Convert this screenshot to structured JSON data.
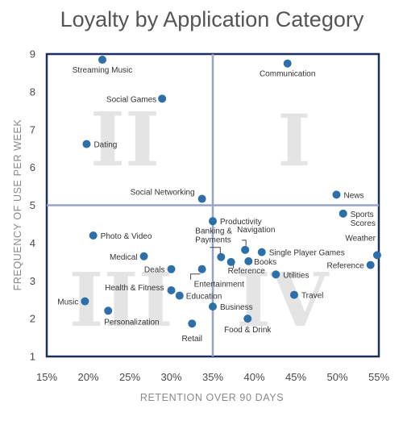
{
  "chart_data": {
    "type": "scatter",
    "title": "Loyalty by Application Category",
    "xlabel": "RETENTION OVER 90 DAYS",
    "ylabel": "FREQUENCY OF USE PER WEEK",
    "xlim": [
      15,
      55
    ],
    "ylim": [
      1,
      9
    ],
    "x_ticks": [
      "15%",
      "20%",
      "25%",
      "30%",
      "35%",
      "40%",
      "45%",
      "50%",
      "55%"
    ],
    "y_ticks": [
      "1",
      "2",
      "3",
      "4",
      "5",
      "6",
      "7",
      "8",
      "9"
    ],
    "quadrant_labels": [
      "I",
      "II",
      "III",
      "IV"
    ],
    "quadrant_divider": {
      "x": 35,
      "y": 5
    },
    "colors": {
      "point": "#2d6fa9",
      "frame": "#1c2e5c",
      "divider": "#9aa3c6",
      "quadrant_text": "#e4e4e4"
    },
    "points": [
      {
        "label": "Streaming Music",
        "x": 21.7,
        "y": 8.85
      },
      {
        "label": "Communication",
        "x": 44.0,
        "y": 8.75
      },
      {
        "label": "Social Games",
        "x": 28.9,
        "y": 7.82
      },
      {
        "label": "Dating",
        "x": 19.8,
        "y": 6.62
      },
      {
        "label": "Social Networking",
        "x": 33.7,
        "y": 5.17
      },
      {
        "label": "News",
        "x": 49.9,
        "y": 5.28
      },
      {
        "label": "Sports Scores",
        "x": 50.7,
        "y": 4.78
      },
      {
        "label": "Productivity",
        "x": 35.0,
        "y": 4.58
      },
      {
        "label": "Photo & Video",
        "x": 20.6,
        "y": 4.2
      },
      {
        "label": "Medical",
        "x": 26.7,
        "y": 3.65
      },
      {
        "label": "Banking & Payments",
        "x": 36.0,
        "y": 3.63
      },
      {
        "label": "Navigation",
        "x": 38.9,
        "y": 3.82
      },
      {
        "label": "Single Player Games",
        "x": 40.9,
        "y": 3.76
      },
      {
        "label": "Weather",
        "x": 54.8,
        "y": 3.68
      },
      {
        "label": "Reference",
        "x": 37.2,
        "y": 3.5
      },
      {
        "label": "Books",
        "x": 39.3,
        "y": 3.52
      },
      {
        "label": "Reference",
        "x": 54.0,
        "y": 3.42
      },
      {
        "label": "Deals",
        "x": 30.0,
        "y": 3.31
      },
      {
        "label": "Entertainment",
        "x": 33.7,
        "y": 3.31
      },
      {
        "label": "Utilities",
        "x": 42.6,
        "y": 3.17
      },
      {
        "label": "Health & Fitness",
        "x": 30.0,
        "y": 2.75
      },
      {
        "label": "Education",
        "x": 31.0,
        "y": 2.61
      },
      {
        "label": "Travel",
        "x": 44.8,
        "y": 2.63
      },
      {
        "label": "Music",
        "x": 19.6,
        "y": 2.46
      },
      {
        "label": "Business",
        "x": 35.0,
        "y": 2.32
      },
      {
        "label": "Personalization",
        "x": 22.4,
        "y": 2.21
      },
      {
        "label": "Food & Drink",
        "x": 39.2,
        "y": 2.0
      },
      {
        "label": "Retail",
        "x": 32.5,
        "y": 1.87
      }
    ]
  }
}
